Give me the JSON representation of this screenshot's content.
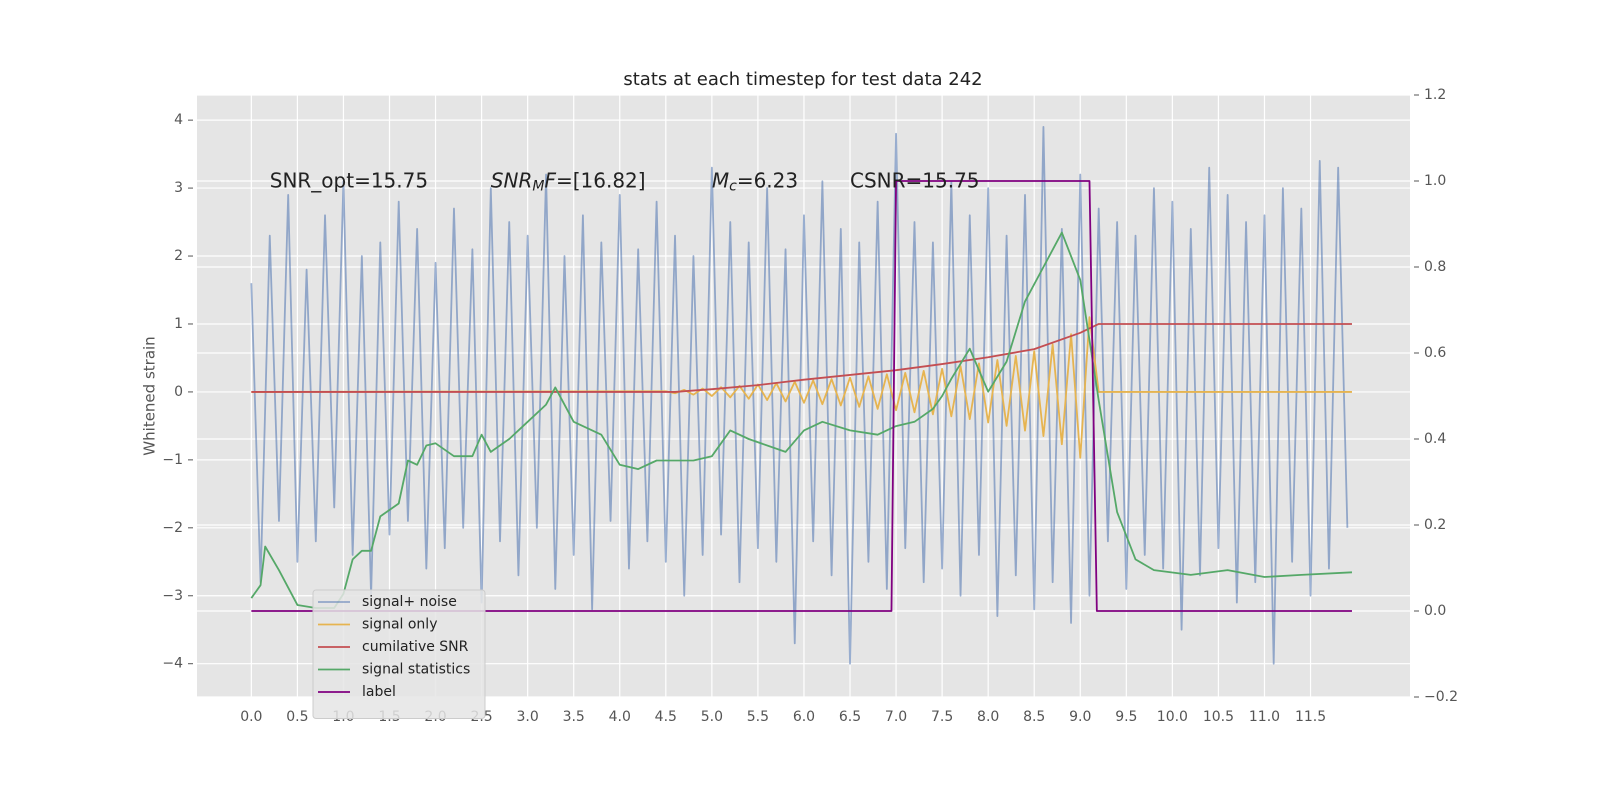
{
  "chart_data": {
    "type": "line",
    "title": "stats at each timestep for test data 242",
    "y_label": "Whitened strain",
    "annotations": [
      [
        "SNR_opt=15.75"
      ],
      [
        "SNR",
        "M",
        "F",
        "=[16.82]"
      ],
      [
        "M",
        "c",
        "=6.23"
      ],
      [
        "CSNR=15.75"
      ]
    ],
    "xlim": [
      -0.59,
      12.58
    ],
    "ylim": [
      -4.49,
      4.37
    ],
    "y2lim": [
      -0.2,
      1.2
    ],
    "xticks": [
      {
        "value": 0,
        "label": "0.0"
      },
      0.5,
      {
        "value": 1,
        "label": "1.0"
      },
      1.5,
      {
        "value": 2,
        "label": "2.0"
      },
      2.5,
      {
        "value": 3,
        "label": "3.0"
      },
      3.5,
      {
        "value": 4,
        "label": "4.0"
      },
      4.5,
      {
        "value": 5,
        "label": "5.0"
      },
      5.5,
      {
        "value": 6,
        "label": "6.0"
      },
      6.5,
      {
        "value": 7,
        "label": "7.0"
      },
      7.5,
      {
        "value": 8,
        "label": "8.0"
      },
      8.5,
      {
        "value": 9,
        "label": "9.0"
      },
      9.5,
      {
        "value": 10,
        "label": "10.0"
      },
      10.5,
      {
        "value": 11,
        "label": "11.0"
      },
      11.5
    ],
    "yticks": [
      {
        "value": -4,
        "label": "−4"
      },
      {
        "value": -3,
        "label": "−3"
      },
      {
        "value": -2,
        "label": "−2"
      },
      {
        "value": -1,
        "label": "−1"
      },
      0,
      1,
      2,
      3,
      4
    ],
    "y2ticks": [
      {
        "value": -0.2,
        "label": "−0.2"
      },
      {
        "value": 0,
        "label": "0.0"
      },
      0.2,
      0.4,
      0.6,
      0.8,
      {
        "value": 1,
        "label": "1.0"
      },
      1.2
    ],
    "grid": true,
    "legend": "lower left",
    "series": [
      {
        "name": "signal+ noise",
        "color": "#4c72b0",
        "alpha": 0.55,
        "x": [
          0,
          0.1,
          0.2,
          0.3,
          0.4,
          0.5,
          0.6,
          0.7,
          0.8,
          0.9,
          1,
          1.1,
          1.2,
          1.3,
          1.4,
          1.5,
          1.6,
          1.7,
          1.8,
          1.9,
          2,
          2.1,
          2.2,
          2.3,
          2.4,
          2.5,
          2.6,
          2.7,
          2.8,
          2.9,
          3,
          3.1,
          3.2,
          3.3,
          3.4,
          3.5,
          3.6,
          3.7,
          3.8,
          3.9,
          4,
          4.1,
          4.2,
          4.3,
          4.4,
          4.5,
          4.6,
          4.7,
          4.8,
          4.9,
          5,
          5.1,
          5.2,
          5.3,
          5.4,
          5.5,
          5.6,
          5.7,
          5.8,
          5.9,
          6,
          6.1,
          6.2,
          6.3,
          6.4,
          6.5,
          6.6,
          6.7,
          6.8,
          6.9,
          7,
          7.1,
          7.2,
          7.3,
          7.4,
          7.5,
          7.6,
          7.7,
          7.8,
          7.9,
          8,
          8.1,
          8.2,
          8.3,
          8.4,
          8.5,
          8.6,
          8.7,
          8.8,
          8.9,
          9,
          9.1,
          9.2,
          9.3,
          9.4,
          9.5,
          9.6,
          9.7,
          9.8,
          9.9,
          10,
          10.1,
          10.2,
          10.3,
          10.4,
          10.5,
          10.6,
          10.7,
          10.8,
          10.9,
          11,
          11.1,
          11.2,
          11.3,
          11.4,
          11.5,
          11.6,
          11.7,
          11.8,
          11.9
        ],
        "values": [
          1.6,
          -2.8,
          2.3,
          -1.9,
          2.9,
          -2.5,
          1.8,
          -2.2,
          2.6,
          -1.7,
          3.1,
          -2.4,
          2.0,
          -3.0,
          2.2,
          -2.1,
          2.8,
          -1.9,
          2.4,
          -2.6,
          1.9,
          -2.3,
          2.7,
          -2.0,
          2.1,
          -3.1,
          3.0,
          -2.2,
          2.5,
          -2.7,
          2.3,
          -2.0,
          3.2,
          -2.9,
          2.0,
          -2.4,
          2.6,
          -3.2,
          2.2,
          -1.9,
          2.9,
          -2.6,
          2.1,
          -2.2,
          2.8,
          -2.5,
          2.3,
          -3.0,
          2.0,
          -2.4,
          3.3,
          -2.1,
          2.5,
          -2.8,
          2.2,
          -2.3,
          3.0,
          -2.5,
          2.1,
          -3.7,
          2.6,
          -2.2,
          3.1,
          -2.7,
          2.4,
          -4.0,
          2.2,
          -2.5,
          2.8,
          -2.9,
          3.8,
          -2.3,
          2.5,
          -2.8,
          2.2,
          -2.6,
          3.1,
          -3.0,
          2.6,
          -2.4,
          3.0,
          -3.3,
          2.3,
          -2.7,
          2.9,
          -3.2,
          3.9,
          -2.8,
          2.4,
          -3.4,
          3.2,
          -3.0,
          2.7,
          -2.2,
          2.5,
          -2.9,
          2.3,
          -2.4,
          3.0,
          -2.6,
          2.8,
          -3.5,
          2.4,
          -2.7,
          3.3,
          -2.3,
          2.9,
          -3.1,
          2.5,
          -2.8,
          2.6,
          -4.0,
          3.0,
          -2.5,
          2.7,
          -3.0,
          3.4,
          -2.6,
          3.3,
          -2.0
        ]
      },
      {
        "name": "signal only",
        "color": "#e6b450",
        "x": [
          0,
          4.5,
          4.6,
          4.7,
          4.8,
          4.9,
          5,
          5.1,
          5.2,
          5.3,
          5.4,
          5.5,
          5.6,
          5.7,
          5.8,
          5.9,
          6,
          6.1,
          6.2,
          6.3,
          6.4,
          6.5,
          6.6,
          6.7,
          6.8,
          6.9,
          7,
          7.1,
          7.2,
          7.3,
          7.4,
          7.5,
          7.6,
          7.7,
          7.8,
          7.9,
          8,
          8.1,
          8.2,
          8.3,
          8.4,
          8.5,
          8.6,
          8.7,
          8.8,
          8.9,
          9,
          9.1,
          9.2,
          11.95
        ],
        "values": [
          0,
          0.01,
          -0.02,
          0.03,
          -0.04,
          0.05,
          -0.06,
          0.07,
          -0.08,
          0.09,
          -0.1,
          0.11,
          -0.12,
          0.13,
          -0.14,
          0.15,
          -0.16,
          0.17,
          -0.18,
          0.19,
          -0.2,
          0.21,
          -0.22,
          0.23,
          -0.25,
          0.26,
          -0.27,
          0.28,
          -0.3,
          0.31,
          -0.33,
          0.34,
          -0.36,
          0.38,
          -0.4,
          0.42,
          -0.45,
          0.47,
          -0.5,
          0.53,
          -0.57,
          0.6,
          -0.65,
          0.7,
          -0.77,
          0.85,
          -0.97,
          1.1,
          0,
          0
        ]
      },
      {
        "name": "cumilative SNR",
        "color": "#c44e52",
        "x": [
          0,
          4.6,
          5,
          5.5,
          6,
          6.5,
          7,
          7.5,
          8,
          8.5,
          9,
          9.2,
          11.95
        ],
        "values": [
          0,
          0,
          0.04,
          0.1,
          0.18,
          0.25,
          0.32,
          0.41,
          0.51,
          0.63,
          0.87,
          1.0,
          1.0
        ]
      },
      {
        "name": "signal statistics",
        "color": "#55a868",
        "axis": "y2",
        "x": [
          0,
          0.1,
          0.15,
          0.3,
          0.5,
          0.7,
          0.9,
          1,
          1.1,
          1.2,
          1.3,
          1.4,
          1.6,
          1.7,
          1.8,
          1.9,
          2,
          2.2,
          2.4,
          2.5,
          2.6,
          2.8,
          3,
          3.2,
          3.3,
          3.5,
          3.8,
          4,
          4.2,
          4.4,
          4.8,
          5,
          5.2,
          5.4,
          5.8,
          6,
          6.2,
          6.5,
          6.8,
          7,
          7.2,
          7.4,
          7.5,
          7.6,
          7.8,
          8,
          8.2,
          8.4,
          8.6,
          8.8,
          9,
          9.2,
          9.4,
          9.6,
          9.8,
          10.2,
          10.6,
          11,
          11.4,
          11.95
        ],
        "values": [
          0.03,
          0.06,
          0.15,
          0.095,
          0.014,
          0.007,
          0.007,
          0.04,
          0.12,
          0.14,
          0.14,
          0.22,
          0.25,
          0.35,
          0.34,
          0.385,
          0.39,
          0.36,
          0.36,
          0.41,
          0.37,
          0.4,
          0.44,
          0.48,
          0.52,
          0.44,
          0.41,
          0.34,
          0.33,
          0.35,
          0.35,
          0.36,
          0.42,
          0.4,
          0.37,
          0.42,
          0.44,
          0.42,
          0.41,
          0.43,
          0.44,
          0.47,
          0.5,
          0.54,
          0.61,
          0.51,
          0.58,
          0.72,
          0.8,
          0.88,
          0.77,
          0.49,
          0.23,
          0.12,
          0.095,
          0.084,
          0.095,
          0.079,
          0.084,
          0.09
        ]
      },
      {
        "name": "label",
        "color": "#800080",
        "axis": "y2",
        "x": [
          0,
          6.95,
          7.0,
          9.1,
          9.18,
          11.95
        ],
        "values": [
          0,
          0,
          1,
          1,
          0,
          0
        ]
      }
    ]
  }
}
